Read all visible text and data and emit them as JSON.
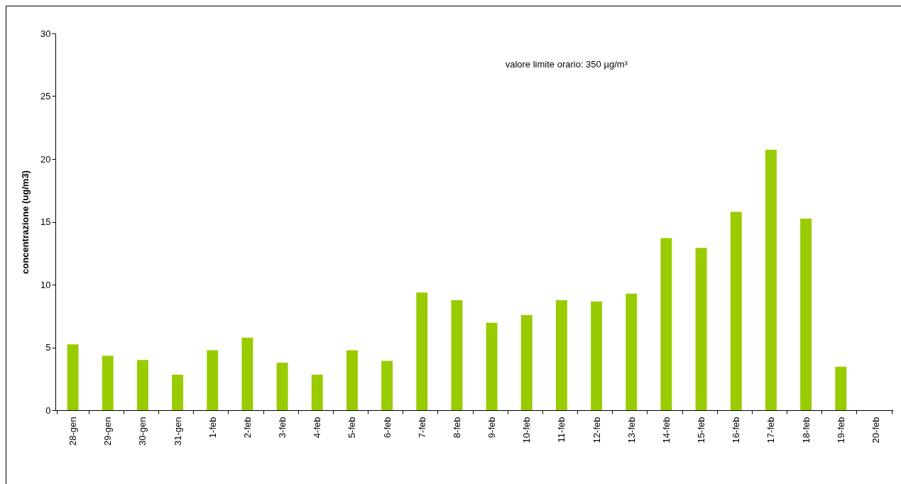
{
  "chart_data": {
    "type": "bar",
    "ylabel": "concentrazione (ug/m3)",
    "annotations": [
      "valore limite orario: 350 µg/m³"
    ],
    "categories": [
      "28-gen",
      "29-gen",
      "30-gen",
      "31-gen",
      "1-feb",
      "2-feb",
      "3-feb",
      "4-feb",
      "5-feb",
      "6-feb",
      "7-feb",
      "8-feb",
      "9-feb",
      "10-feb",
      "11-feb",
      "12-feb",
      "13-feb",
      "14-feb",
      "15-feb",
      "16-feb",
      "17-feb",
      "18-feb",
      "19-feb",
      "20-feb"
    ],
    "values": [
      5.24,
      4.33,
      4.0,
      2.83,
      4.78,
      5.78,
      3.78,
      2.83,
      4.78,
      3.93,
      9.36,
      8.76,
      6.96,
      7.57,
      8.76,
      8.66,
      9.28,
      13.7,
      12.92,
      15.79,
      20.73,
      15.26,
      3.46,
      null
    ],
    "color": "#99cc00",
    "ylim": [
      0,
      30
    ],
    "yticks": [
      0,
      5,
      10,
      15,
      20,
      25,
      30
    ],
    "grid": false
  }
}
